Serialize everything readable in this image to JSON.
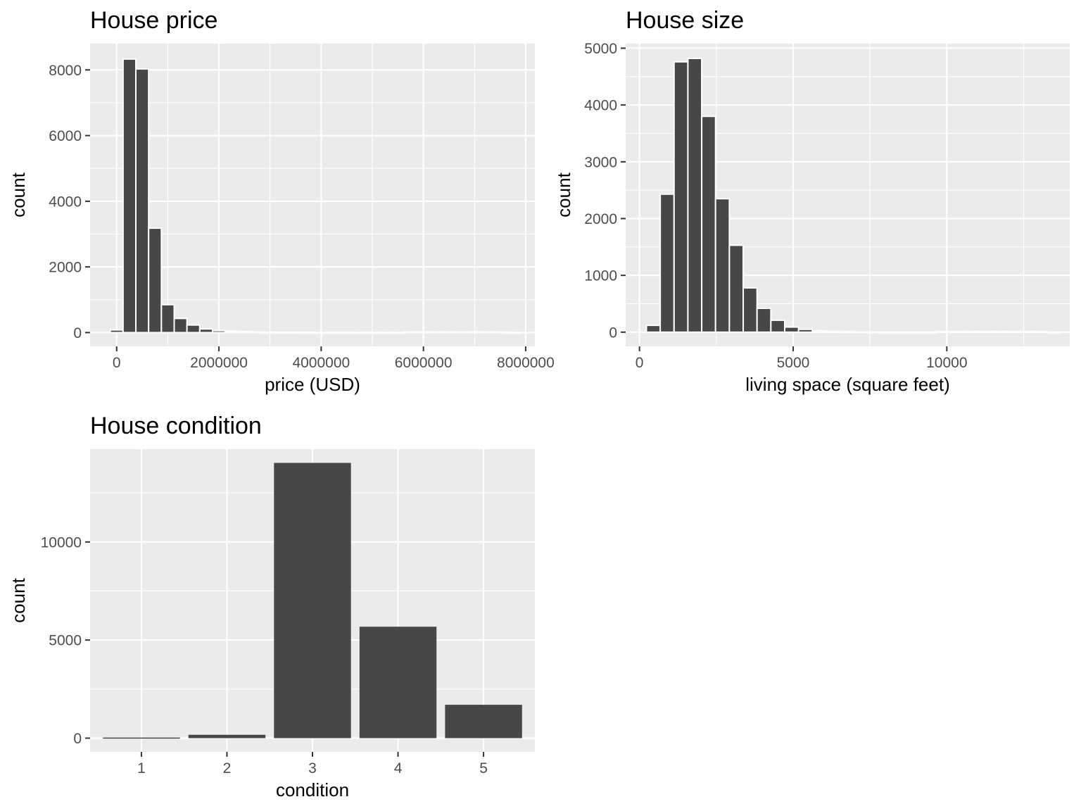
{
  "chart_data": [
    {
      "id": "price",
      "type": "bar",
      "subtype": "histogram",
      "title": "House price",
      "xlabel": "price (USD)",
      "ylabel": "count",
      "xlim": [
        -520000,
        8180000
      ],
      "ylim": [
        -420,
        8800
      ],
      "x_ticks": [
        0,
        2000000,
        4000000,
        6000000,
        8000000
      ],
      "x_tick_labels": [
        "0",
        "2000000",
        "4000000",
        "6000000",
        "8000000"
      ],
      "y_ticks": [
        0,
        2000,
        4000,
        6000,
        8000
      ],
      "y_tick_labels": [
        "0",
        "2000",
        "4000",
        "6000",
        "8000"
      ],
      "bin_width": 250000,
      "bin_starts": [
        -125000,
        125000,
        375000,
        625000,
        875000,
        1125000,
        1375000,
        1625000,
        1875000,
        2125000,
        2375000,
        2625000,
        2875000,
        3125000,
        3375000,
        3625000,
        3875000,
        4125000,
        4375000,
        4625000,
        4875000,
        5125000,
        5375000,
        5625000,
        5875000,
        6125000,
        6375000,
        6625000,
        6875000,
        7125000,
        7375000,
        7625000
      ],
      "values": [
        80,
        8330,
        8030,
        3180,
        850,
        430,
        230,
        110,
        60,
        40,
        30,
        20,
        12,
        8,
        6,
        4,
        3,
        2,
        2,
        1,
        1,
        1,
        1,
        0,
        0,
        0,
        0,
        0,
        0,
        0,
        0,
        1
      ],
      "grid": true
    },
    {
      "id": "size",
      "type": "bar",
      "subtype": "histogram",
      "title": "House size",
      "xlabel": "living space (square feet)",
      "ylabel": "count",
      "xlim": [
        -450,
        14000
      ],
      "ylim": [
        -250,
        5080
      ],
      "x_ticks": [
        0,
        5000,
        10000
      ],
      "x_tick_labels": [
        "0",
        "5000",
        "10000"
      ],
      "y_ticks": [
        0,
        1000,
        2000,
        3000,
        4000,
        5000
      ],
      "y_tick_labels": [
        "0",
        "1000",
        "2000",
        "3000",
        "4000",
        "5000"
      ],
      "bin_width": 450,
      "bin_starts": [
        225,
        675,
        1125,
        1575,
        2025,
        2475,
        2925,
        3375,
        3825,
        4275,
        4725,
        5175,
        5625,
        6075,
        6525,
        6975,
        7425,
        7875,
        8325,
        8775,
        9225,
        9675,
        10125,
        10575,
        11025,
        11475,
        11925,
        12375,
        12825,
        13275
      ],
      "values": [
        120,
        2430,
        4760,
        4820,
        3800,
        2350,
        1530,
        780,
        420,
        210,
        90,
        50,
        25,
        15,
        8,
        5,
        3,
        2,
        1,
        1,
        1,
        0,
        0,
        0,
        0,
        0,
        0,
        0,
        0,
        1
      ],
      "grid": true
    },
    {
      "id": "condition",
      "type": "bar",
      "title": "House condition",
      "xlabel": "condition",
      "ylabel": "count",
      "categories": [
        "1",
        "2",
        "3",
        "4",
        "5"
      ],
      "values": [
        30,
        170,
        14030,
        5680,
        1700
      ],
      "ylim": [
        -700,
        14730
      ],
      "y_ticks": [
        0,
        5000,
        10000
      ],
      "y_tick_labels": [
        "0",
        "5000",
        "10000"
      ],
      "grid": true
    }
  ]
}
